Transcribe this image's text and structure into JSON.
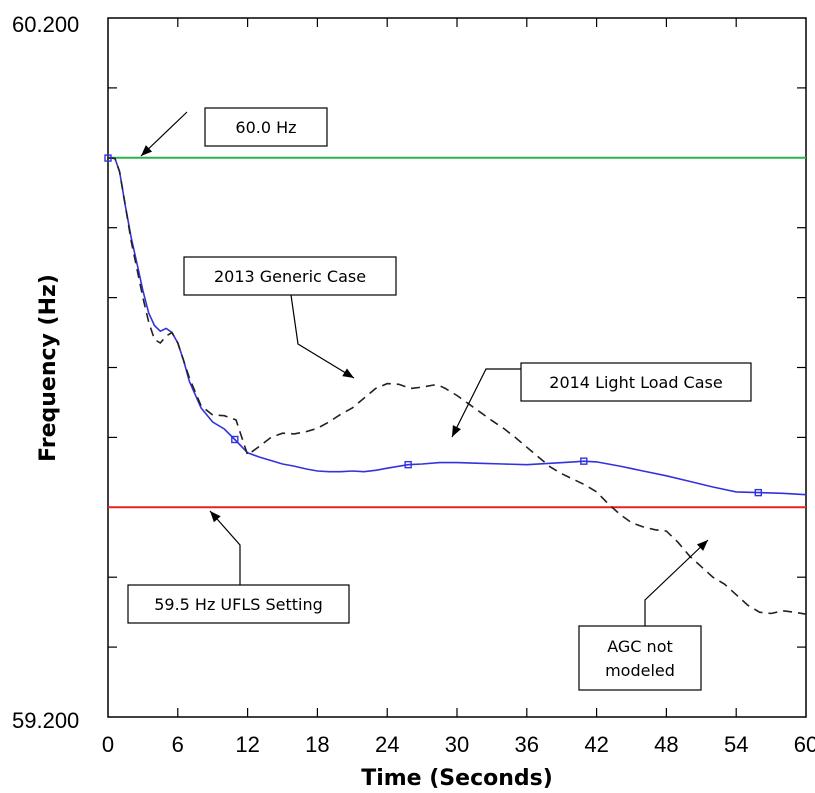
{
  "chart_data": {
    "type": "line",
    "title": "",
    "xlabel": "Time (Seconds)",
    "ylabel": "Frequency (Hz)",
    "xlim": [
      0,
      60
    ],
    "ylim": [
      59.2,
      60.2
    ],
    "x_ticks": [
      "0",
      "6",
      "12",
      "18",
      "24",
      "30",
      "36",
      "42",
      "48",
      "54",
      "60"
    ],
    "y_tick_labels": {
      "min": "59.200",
      "max": "60.200"
    },
    "grid": false,
    "series": [
      {
        "name": "2014 Light Load Case",
        "color": "#3333dd",
        "style": "solid",
        "marker": "square",
        "marker_x": [
          0,
          10.9,
          25.8,
          40.9,
          55.9
        ],
        "x": [
          0,
          0.3,
          0.6,
          1.0,
          1.5,
          2.0,
          2.5,
          3.0,
          3.5,
          4.0,
          4.5,
          5.0,
          5.5,
          6.0,
          6.5,
          7.0,
          8.0,
          9.0,
          10.0,
          10.9,
          12.0,
          13.0,
          14.0,
          15.0,
          16.0,
          17.0,
          18.0,
          19.0,
          20.0,
          21.0,
          22.0,
          23.0,
          24.0,
          25.8,
          27.0,
          28.5,
          30.0,
          32.0,
          34.0,
          36.0,
          38.0,
          40.0,
          40.9,
          42.0,
          44.0,
          46.0,
          48.0,
          50.0,
          52.0,
          54.0,
          55.9,
          58.0,
          60.0
        ],
        "y": [
          59.9996,
          59.9995,
          59.999,
          59.98,
          59.93,
          59.885,
          59.848,
          59.81,
          59.778,
          59.76,
          59.752,
          59.756,
          59.75,
          59.735,
          59.71,
          59.68,
          59.642,
          59.622,
          59.612,
          59.597,
          59.578,
          59.572,
          59.567,
          59.562,
          59.559,
          59.555,
          59.552,
          59.551,
          59.551,
          59.552,
          59.551,
          59.553,
          59.556,
          59.561,
          59.562,
          59.564,
          59.564,
          59.563,
          59.562,
          59.561,
          59.563,
          59.565,
          59.566,
          59.565,
          59.559,
          59.552,
          59.545,
          59.537,
          59.529,
          59.522,
          59.521,
          59.52,
          59.518
        ]
      },
      {
        "name": "2013 Generic Case",
        "color": "#222222",
        "style": "dashed",
        "x": [
          0,
          0.3,
          0.6,
          1.0,
          1.5,
          2.0,
          2.5,
          3.0,
          3.5,
          4.0,
          4.5,
          5.0,
          5.5,
          6.0,
          7.0,
          8.0,
          9.0,
          10.0,
          11.0,
          11.5,
          12.0,
          13.0,
          14.0,
          15.0,
          16.0,
          17.0,
          18.0,
          19.0,
          20.0,
          21.0,
          22.0,
          23.0,
          24.0,
          25.0,
          26.0,
          27.0,
          28.0,
          28.5,
          29.0,
          30.0,
          31.0,
          32.0,
          33.0,
          34.0,
          35.0,
          36.0,
          37.0,
          38.0,
          39.0,
          40.0,
          41.0,
          42.0,
          43.0,
          44.0,
          45.0,
          46.0,
          47.0,
          48.0,
          49.0,
          50.0,
          51.0,
          52.0,
          53.0,
          54.0,
          55.0,
          56.0,
          57.0,
          58.0,
          59.0,
          60.0
        ],
        "y": [
          59.9996,
          59.9995,
          59.999,
          59.98,
          59.93,
          59.88,
          59.84,
          59.8,
          59.765,
          59.74,
          59.735,
          59.745,
          59.75,
          59.735,
          59.685,
          59.645,
          59.632,
          59.631,
          59.625,
          59.6,
          59.575,
          59.587,
          59.6,
          59.606,
          59.605,
          59.608,
          59.613,
          59.622,
          59.633,
          59.642,
          59.656,
          59.67,
          59.677,
          59.676,
          59.67,
          59.672,
          59.675,
          59.674,
          59.67,
          59.66,
          59.648,
          59.636,
          59.624,
          59.613,
          59.6,
          59.586,
          59.572,
          59.558,
          59.548,
          59.54,
          59.532,
          59.522,
          59.505,
          59.49,
          59.478,
          59.472,
          59.468,
          59.466,
          59.45,
          59.43,
          59.415,
          59.4,
          59.39,
          59.375,
          59.36,
          59.35,
          59.348,
          59.352,
          59.35,
          59.347
        ]
      },
      {
        "name": "60.0 Hz",
        "color": "#2db34a",
        "style": "solid",
        "x": [
          0,
          60
        ],
        "y": [
          60.0,
          60.0
        ]
      },
      {
        "name": "59.5 Hz UFLS Setting",
        "color": "#e8231f",
        "style": "solid",
        "x": [
          0,
          60
        ],
        "y": [
          59.5,
          59.5
        ]
      }
    ],
    "annotations": [
      {
        "text": [
          "60.0 Hz"
        ]
      },
      {
        "text": [
          "2013 Generic Case"
        ]
      },
      {
        "text": [
          "2014 Light Load Case"
        ]
      },
      {
        "text": [
          "59.5 Hz UFLS Setting"
        ]
      },
      {
        "text": [
          "AGC not",
          "modeled"
        ]
      }
    ]
  }
}
